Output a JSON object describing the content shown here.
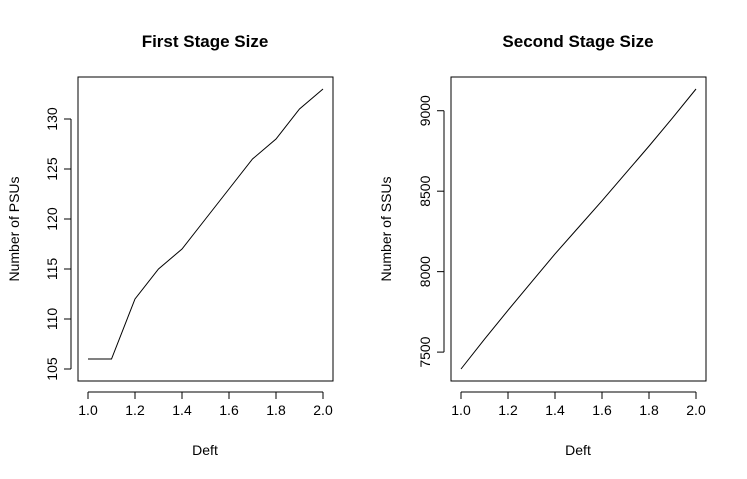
{
  "chart_data": [
    {
      "type": "line",
      "title": "First Stage Size",
      "xlabel": "Deft",
      "ylabel": "Number of PSUs",
      "xlim": [
        1.0,
        2.0
      ],
      "ylim": [
        105,
        133
      ],
      "xticks": [
        "1.0",
        "1.2",
        "1.4",
        "1.6",
        "1.8",
        "2.0"
      ],
      "yticks": [
        "105",
        "110",
        "115",
        "120",
        "125",
        "130"
      ],
      "grid": false,
      "legend": "none",
      "x": [
        1.0,
        1.1,
        1.2,
        1.3,
        1.4,
        1.5,
        1.6,
        1.7,
        1.8,
        1.9,
        2.0
      ],
      "y": [
        106,
        106,
        112,
        115,
        117,
        120,
        123,
        126,
        128,
        131,
        133
      ]
    },
    {
      "type": "line",
      "title": "Second Stage Size",
      "xlabel": "Deft",
      "ylabel": "Number of SSUs",
      "xlim": [
        1.0,
        2.0
      ],
      "ylim": [
        7395,
        9135
      ],
      "xticks": [
        "1.0",
        "1.2",
        "1.4",
        "1.6",
        "1.8",
        "2.0"
      ],
      "yticks": [
        "7500",
        "8000",
        "8500",
        "9000"
      ],
      "grid": false,
      "legend": "none",
      "x": [
        1.0,
        1.1,
        1.2,
        1.3,
        1.4,
        1.5,
        1.6,
        1.7,
        1.8,
        1.9,
        2.0
      ],
      "y": [
        7395,
        7580,
        7760,
        7935,
        8110,
        8275,
        8440,
        8610,
        8780,
        8955,
        9135
      ]
    }
  ]
}
